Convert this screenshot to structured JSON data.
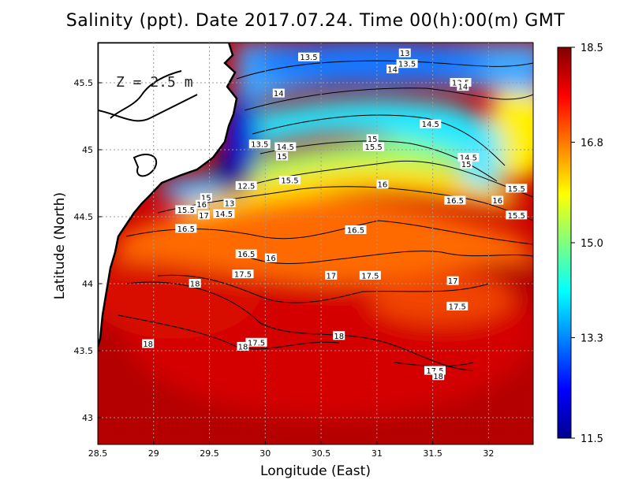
{
  "chart_data": {
    "type": "heatmap",
    "title": "Salinity (ppt). Date 2017.07.24. Time 00(h):00(m) GMT",
    "xlabel": "Longitude (East)",
    "ylabel": "Latitude (North)",
    "annotation": "Z = 2.5 m",
    "xlim": [
      28.5,
      32.4
    ],
    "ylim": [
      42.8,
      45.8
    ],
    "xticks": [
      "28.5",
      "29",
      "29.5",
      "30",
      "30.5",
      "31",
      "31.5",
      "32"
    ],
    "xtick_values": [
      28.5,
      29,
      29.5,
      30,
      30.5,
      31,
      31.5,
      32
    ],
    "yticks": [
      "43",
      "43.5",
      "44",
      "44.5",
      "45",
      "45.5"
    ],
    "ytick_values": [
      43,
      43.5,
      44,
      44.5,
      45,
      45.5
    ],
    "grid": true,
    "colorbar": {
      "min": 11.5,
      "max": 18.5,
      "ticks": [
        "18.5",
        "16.8",
        "15.0",
        "13.3",
        "11.5"
      ],
      "tick_values": [
        18.5,
        16.8,
        15.0,
        13.3,
        11.5
      ],
      "colormap": [
        "#00008f",
        "#0000ff",
        "#0080ff",
        "#00ffff",
        "#80ff80",
        "#ffff00",
        "#ff8000",
        "#ff0000",
        "#800000"
      ]
    },
    "contour_labels": [
      {
        "text": "13.5",
        "lon": 30.39,
        "lat": 45.69
      },
      {
        "text": "13",
        "lon": 31.25,
        "lat": 45.72
      },
      {
        "text": "13.5",
        "lon": 31.27,
        "lat": 45.64
      },
      {
        "text": "14",
        "lon": 31.14,
        "lat": 45.6
      },
      {
        "text": "13.5",
        "lon": 31.75,
        "lat": 45.5
      },
      {
        "text": "14",
        "lon": 31.77,
        "lat": 45.47
      },
      {
        "text": "14",
        "lon": 30.12,
        "lat": 45.42
      },
      {
        "text": "14.5",
        "lon": 31.48,
        "lat": 45.19
      },
      {
        "text": "15",
        "lon": 30.96,
        "lat": 45.08
      },
      {
        "text": "13.5",
        "lon": 29.95,
        "lat": 45.04
      },
      {
        "text": "14.5",
        "lon": 30.18,
        "lat": 45.02
      },
      {
        "text": "15.5",
        "lon": 30.97,
        "lat": 45.02
      },
      {
        "text": "15",
        "lon": 30.15,
        "lat": 44.95
      },
      {
        "text": "14.5",
        "lon": 31.82,
        "lat": 44.94
      },
      {
        "text": "15",
        "lon": 31.8,
        "lat": 44.89
      },
      {
        "text": "15.5",
        "lon": 30.22,
        "lat": 44.77
      },
      {
        "text": "16",
        "lon": 31.05,
        "lat": 44.74
      },
      {
        "text": "12.5",
        "lon": 29.83,
        "lat": 44.73
      },
      {
        "text": "15.5",
        "lon": 32.25,
        "lat": 44.71
      },
      {
        "text": "15",
        "lon": 29.47,
        "lat": 44.64
      },
      {
        "text": "16",
        "lon": 29.43,
        "lat": 44.59
      },
      {
        "text": "13",
        "lon": 29.68,
        "lat": 44.6
      },
      {
        "text": "16.5",
        "lon": 31.7,
        "lat": 44.62
      },
      {
        "text": "16",
        "lon": 32.08,
        "lat": 44.62
      },
      {
        "text": "15.5",
        "lon": 29.29,
        "lat": 44.55
      },
      {
        "text": "14.5",
        "lon": 29.63,
        "lat": 44.52
      },
      {
        "text": "17",
        "lon": 29.45,
        "lat": 44.51
      },
      {
        "text": "15.5",
        "lon": 32.25,
        "lat": 44.51
      },
      {
        "text": "16.5",
        "lon": 29.29,
        "lat": 44.41
      },
      {
        "text": "16.5",
        "lon": 30.81,
        "lat": 44.4
      },
      {
        "text": "16.5",
        "lon": 29.83,
        "lat": 44.22
      },
      {
        "text": "16",
        "lon": 30.05,
        "lat": 44.19
      },
      {
        "text": "17.5",
        "lon": 29.8,
        "lat": 44.07
      },
      {
        "text": "17",
        "lon": 30.59,
        "lat": 44.06
      },
      {
        "text": "17.5",
        "lon": 30.94,
        "lat": 44.06
      },
      {
        "text": "17",
        "lon": 31.68,
        "lat": 44.02
      },
      {
        "text": "18",
        "lon": 29.37,
        "lat": 44.0
      },
      {
        "text": "17.5",
        "lon": 31.72,
        "lat": 43.83
      },
      {
        "text": "17.5",
        "lon": 29.92,
        "lat": 43.56
      },
      {
        "text": "18",
        "lon": 29.8,
        "lat": 43.53
      },
      {
        "text": "18",
        "lon": 28.95,
        "lat": 43.55
      },
      {
        "text": "18",
        "lon": 30.66,
        "lat": 43.61
      },
      {
        "text": "17.5",
        "lon": 31.52,
        "lat": 43.35
      },
      {
        "text": "18",
        "lon": 31.55,
        "lat": 43.31
      }
    ]
  }
}
